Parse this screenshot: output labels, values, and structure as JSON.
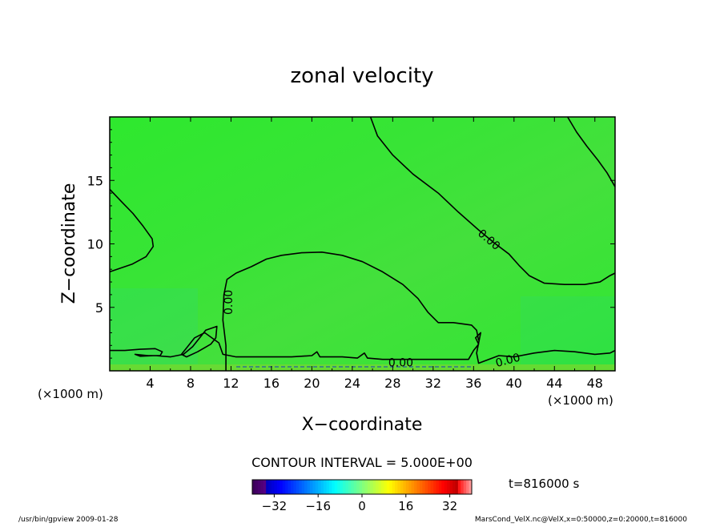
{
  "chart_data": {
    "type": "heatmap",
    "title": "zonal velocity",
    "xlabel": "X−coordinate",
    "ylabel": "Z−coordinate",
    "x_unit_left": "(×1000 m)",
    "x_unit_right": "(×1000 m)",
    "xlim": [
      0,
      50
    ],
    "ylim": [
      0,
      20
    ],
    "x_ticks": [
      4,
      8,
      12,
      16,
      20,
      24,
      28,
      32,
      36,
      40,
      44,
      48
    ],
    "y_ticks": [
      5,
      10,
      15
    ],
    "contour_interval_text": "CONTOUR INTERVAL = 5.000E+00",
    "time_text": "t=816000 s",
    "colorbar": {
      "range": [
        -40,
        40
      ],
      "tick_labels": [
        "−32",
        "−16",
        "0",
        "16",
        "32"
      ],
      "tick_values": [
        -32,
        -16,
        0,
        16,
        32
      ]
    },
    "contour_labels": [
      {
        "text": "0.00",
        "x": 37.5,
        "y": 10.3,
        "angle": 40
      },
      {
        "text": "0.00",
        "x": 11.8,
        "y": 5.4,
        "angle": -90
      },
      {
        "text": "0.00",
        "x": 28.8,
        "y": 0.6,
        "angle": 0
      },
      {
        "text": "0.00",
        "x": 39.4,
        "y": 0.8,
        "angle": -15
      }
    ],
    "contour_lines": [
      [
        [
          25.8,
          20
        ],
        [
          26.5,
          18.5
        ],
        [
          28,
          17
        ],
        [
          30,
          15.5
        ],
        [
          32.5,
          14
        ],
        [
          34.5,
          12.5
        ],
        [
          36.5,
          11.1
        ],
        [
          38,
          10.1
        ],
        [
          39.5,
          9.2
        ],
        [
          40.5,
          8.3
        ],
        [
          41.5,
          7.5
        ],
        [
          43,
          6.9
        ],
        [
          45,
          6.8
        ],
        [
          47,
          6.8
        ],
        [
          48.5,
          7.0
        ],
        [
          49.5,
          7.5
        ],
        [
          50,
          7.7
        ]
      ],
      [
        [
          45.3,
          20
        ],
        [
          46.2,
          18.8
        ],
        [
          47.2,
          17.7
        ],
        [
          48.3,
          16.6
        ],
        [
          49.2,
          15.6
        ],
        [
          50,
          14.5
        ]
      ],
      [
        [
          0,
          14.3
        ],
        [
          1.2,
          13.3
        ],
        [
          2.3,
          12.4
        ],
        [
          3.3,
          11.4
        ],
        [
          4.2,
          10.4
        ],
        [
          4.3,
          9.8
        ],
        [
          3.6,
          9.0
        ],
        [
          2.2,
          8.4
        ],
        [
          0,
          7.8
        ]
      ],
      [
        [
          11.5,
          0
        ],
        [
          11.5,
          2.0
        ],
        [
          11.2,
          4.0
        ],
        [
          11.3,
          6.0
        ],
        [
          11.6,
          7.2
        ],
        [
          12.5,
          7.7
        ],
        [
          14,
          8.2
        ],
        [
          15.5,
          8.8
        ],
        [
          17,
          9.1
        ],
        [
          19,
          9.3
        ],
        [
          21,
          9.35
        ],
        [
          23,
          9.1
        ],
        [
          25,
          8.6
        ],
        [
          27,
          7.8
        ],
        [
          29,
          6.8
        ],
        [
          30.5,
          5.7
        ],
        [
          31.5,
          4.6
        ],
        [
          32.5,
          3.8
        ],
        [
          34,
          3.8
        ],
        [
          35.8,
          3.6
        ],
        [
          36.3,
          3.2
        ],
        [
          36.5,
          2.4
        ]
      ],
      [
        [
          0,
          1.6
        ],
        [
          1.5,
          1.6
        ],
        [
          3,
          1.7
        ],
        [
          4.5,
          1.75
        ],
        [
          5.2,
          1.5
        ],
        [
          5.0,
          1.2
        ],
        [
          3.8,
          1.2
        ],
        [
          2.5,
          1.3
        ],
        [
          3,
          1.15
        ],
        [
          4.5,
          1.2
        ],
        [
          6,
          1.1
        ],
        [
          7.3,
          1.3
        ],
        [
          8.2,
          1.9
        ],
        [
          9.5,
          3.2
        ],
        [
          10.6,
          3.5
        ],
        [
          10.5,
          2.6
        ],
        [
          10,
          2.1
        ],
        [
          8.7,
          1.5
        ],
        [
          7.6,
          1.1
        ],
        [
          7.1,
          1.3
        ],
        [
          7.7,
          1.9
        ],
        [
          8.4,
          2.6
        ],
        [
          9.4,
          3.0
        ],
        [
          10.8,
          2.2
        ],
        [
          11.2,
          1.3
        ],
        [
          12.5,
          1.1
        ],
        [
          14,
          1.1
        ],
        [
          16,
          1.1
        ],
        [
          18,
          1.1
        ],
        [
          20,
          1.2
        ],
        [
          20.5,
          1.5
        ],
        [
          20.8,
          1.1
        ],
        [
          23,
          1.1
        ],
        [
          24.5,
          1.0
        ],
        [
          25.2,
          1.4
        ],
        [
          25.5,
          1.0
        ],
        [
          27,
          0.9
        ],
        [
          28.5,
          0.9
        ],
        [
          30,
          0.9
        ],
        [
          32,
          0.9
        ],
        [
          34,
          0.9
        ],
        [
          35.5,
          0.9
        ],
        [
          36,
          1.6
        ],
        [
          36.5,
          2.1
        ],
        [
          36.2,
          2.6
        ],
        [
          36.7,
          3.0
        ],
        [
          36.3,
          1.4
        ],
        [
          36.5,
          0.6
        ],
        [
          37.5,
          0.9
        ],
        [
          38.5,
          1.2
        ],
        [
          40,
          1.1
        ],
        [
          42,
          1.4
        ],
        [
          44,
          1.6
        ],
        [
          46,
          1.5
        ],
        [
          48,
          1.3
        ],
        [
          49.5,
          1.4
        ],
        [
          50,
          1.6
        ]
      ]
    ],
    "footer_left": "/usr/bin/gpview  2009-01-28",
    "footer_right": "MarsCond_VelX.nc@VelX,x=0:50000,z=0:20000,t=816000"
  }
}
